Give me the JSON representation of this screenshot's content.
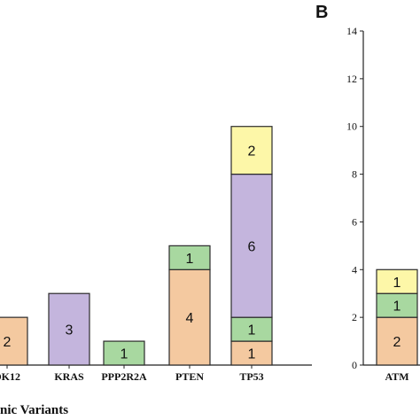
{
  "panel_labels": [
    "B"
  ],
  "chart_data": [
    {
      "type": "bar",
      "stacked": true,
      "xlabel": "nic Variants",
      "categories": [
        "DK12",
        "KRAS",
        "PPP2R2A",
        "PTEN",
        "TP53"
      ],
      "ylim": [
        0,
        14
      ],
      "y_axis_visible": false,
      "stacks": [
        [
          {
            "value": 2,
            "label": "2",
            "color": "#f4c9a0"
          }
        ],
        [
          {
            "value": 3,
            "label": "3",
            "color": "#c4b5dd"
          }
        ],
        [
          {
            "value": 1,
            "label": "1",
            "color": "#a8d8a0"
          }
        ],
        [
          {
            "value": 4,
            "label": "4",
            "color": "#f4c9a0"
          },
          {
            "value": 1,
            "label": "1",
            "color": "#a8d8a0"
          }
        ],
        [
          {
            "value": 1,
            "label": "1",
            "color": "#f4c9a0"
          },
          {
            "value": 1,
            "label": "1",
            "color": "#a8d8a0"
          },
          {
            "value": 6,
            "label": "6",
            "color": "#c4b5dd"
          },
          {
            "value": 2,
            "label": "2",
            "color": "#fdf7a8"
          }
        ]
      ]
    },
    {
      "type": "bar",
      "stacked": true,
      "categories": [
        "ATM"
      ],
      "ylim": [
        0,
        14
      ],
      "yticks": [
        0,
        2,
        4,
        6,
        8,
        10,
        12,
        14
      ],
      "stacks": [
        [
          {
            "value": 2,
            "label": "2",
            "color": "#f4c9a0"
          },
          {
            "value": 1,
            "label": "1",
            "color": "#a8d8a0"
          },
          {
            "value": 1,
            "label": "1",
            "color": "#fdf7a8"
          }
        ]
      ]
    }
  ]
}
